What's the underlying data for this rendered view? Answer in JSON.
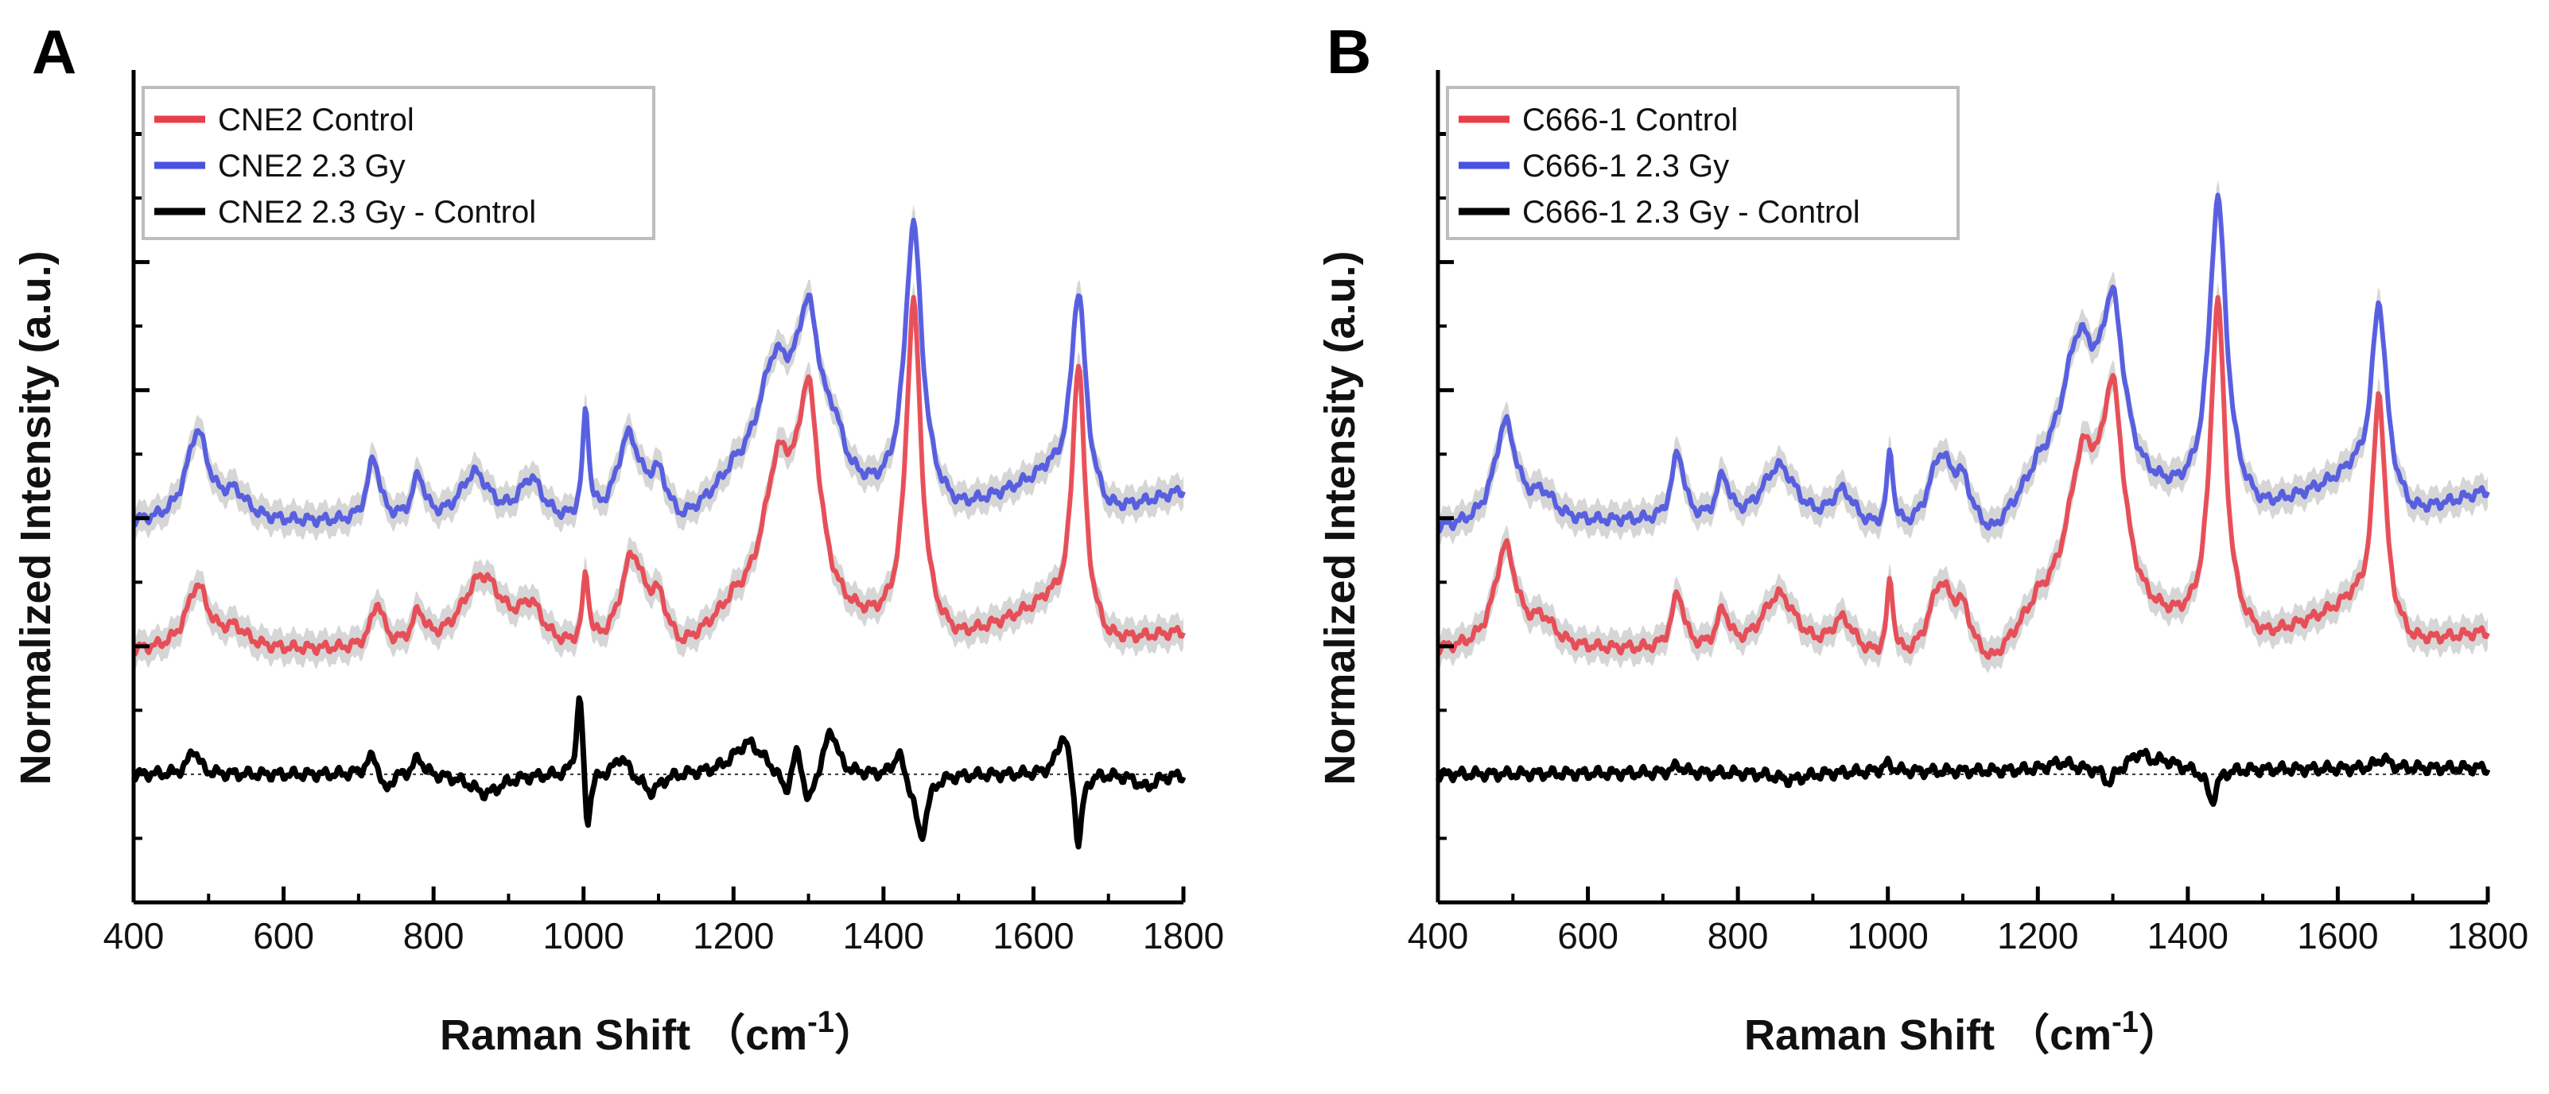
{
  "chart_data": [
    {
      "type": "line",
      "panel": "A",
      "xlabel_main": "Raman Shift",
      "xlabel_unit": "（cm",
      "xlabel_sup": "-1",
      "xlabel_close": "）",
      "ylabel": "Normalized Intensity (a.u.)",
      "xlim": [
        400,
        1800
      ],
      "ylim": [
        0,
        6.5
      ],
      "xticks": [
        "400",
        "600",
        "800",
        "1000",
        "1200",
        "1400",
        "1600",
        "1800"
      ],
      "yticks_count": 7,
      "legend": [
        "CNE2 Control",
        "CNE2 2.3 Gy",
        "CNE2 2.3 Gy - Control"
      ],
      "colors": [
        "#e8404a",
        "#4a52e0",
        "#000000"
      ],
      "series": [
        {
          "name": "CNE2 2.3 Gy",
          "offset": 3.0,
          "baseline": [
            [
              400,
              -0.05
            ],
            [
              650,
              -0.05
            ],
            [
              1130,
              -0.15
            ],
            [
              1200,
              0.2
            ],
            [
              1500,
              0.0
            ],
            [
              1620,
              0.3
            ],
            [
              1700,
              0.0
            ],
            [
              1800,
              0.2
            ]
          ],
          "peaks": [
            [
              485,
              0.7,
              18
            ],
            [
              535,
              0.2,
              20
            ],
            [
              720,
              0.5,
              10
            ],
            [
              780,
              0.35,
              10
            ],
            [
              855,
              0.4,
              25
            ],
            [
              930,
              0.35,
              20
            ],
            [
              1003,
              0.85,
              5
            ],
            [
              1060,
              0.7,
              20
            ],
            [
              1100,
              0.35,
              15
            ],
            [
              1255,
              0.9,
              28
            ],
            [
              1300,
              1.25,
              20
            ],
            [
              1335,
              0.3,
              15
            ],
            [
              1440,
              2.2,
              14
            ],
            [
              1660,
              1.6,
              12
            ]
          ]
        },
        {
          "name": "CNE2 Control",
          "offset": 2.0,
          "baseline": [
            [
              400,
              -0.05
            ],
            [
              650,
              -0.05
            ],
            [
              1130,
              -0.15
            ],
            [
              1200,
              0.2
            ],
            [
              1500,
              0.0
            ],
            [
              1620,
              0.3
            ],
            [
              1700,
              0.0
            ],
            [
              1800,
              0.1
            ]
          ],
          "peaks": [
            [
              485,
              0.5,
              18
            ],
            [
              535,
              0.15,
              20
            ],
            [
              725,
              0.35,
              10
            ],
            [
              780,
              0.25,
              10
            ],
            [
              865,
              0.6,
              35
            ],
            [
              930,
              0.3,
              20
            ],
            [
              1003,
              0.55,
              5
            ],
            [
              1065,
              0.75,
              20
            ],
            [
              1100,
              0.35,
              15
            ],
            [
              1260,
              1.1,
              25
            ],
            [
              1300,
              1.6,
              18
            ],
            [
              1440,
              2.6,
              12
            ],
            [
              1660,
              2.05,
              10
            ]
          ]
        },
        {
          "name": "CNE2 2.3 Gy - Control",
          "offset": 1.0,
          "baseline": [
            [
              400,
              0.0
            ],
            [
              1800,
              0.0
            ]
          ],
          "peaks": [
            [
              480,
              0.2,
              8
            ],
            [
              720,
              0.18,
              10
            ],
            [
              735,
              -0.18,
              8
            ],
            [
              780,
              0.14,
              8
            ],
            [
              870,
              -0.15,
              25
            ],
            [
              995,
              0.7,
              5
            ],
            [
              1005,
              -0.5,
              5
            ],
            [
              1050,
              0.15,
              10
            ],
            [
              1090,
              -0.15,
              15
            ],
            [
              1220,
              0.25,
              25
            ],
            [
              1270,
              -0.2,
              10
            ],
            [
              1285,
              0.25,
              8
            ],
            [
              1300,
              -0.3,
              8
            ],
            [
              1330,
              0.35,
              10
            ],
            [
              1420,
              0.2,
              8
            ],
            [
              1450,
              -0.5,
              10
            ],
            [
              1640,
              0.35,
              10
            ],
            [
              1660,
              -0.6,
              6
            ],
            [
              1750,
              -0.1,
              15
            ]
          ]
        }
      ]
    },
    {
      "type": "line",
      "panel": "B",
      "xlabel_main": "Raman Shift",
      "xlabel_unit": "（cm",
      "xlabel_sup": "-1",
      "xlabel_close": "）",
      "ylabel": "Normalized Intensity (a.u.)",
      "xlim": [
        400,
        1800
      ],
      "ylim": [
        0,
        6.5
      ],
      "xticks": [
        "400",
        "600",
        "800",
        "1000",
        "1200",
        "1400",
        "1600",
        "1800"
      ],
      "yticks_count": 7,
      "legend": [
        "C666-1 Control",
        "C666-1 2.3 Gy",
        "C666-1 2.3 Gy - Control"
      ],
      "colors": [
        "#e8404a",
        "#4a52e0",
        "#000000"
      ],
      "series": [
        {
          "name": "C666-1 2.3 Gy",
          "offset": 3.0,
          "baseline": [
            [
              400,
              -0.1
            ],
            [
              650,
              -0.05
            ],
            [
              1140,
              -0.25
            ],
            [
              1200,
              0.2
            ],
            [
              1500,
              0.0
            ],
            [
              1620,
              0.3
            ],
            [
              1700,
              0.0
            ],
            [
              1800,
              0.2
            ]
          ],
          "peaks": [
            [
              490,
              0.8,
              18
            ],
            [
              540,
              0.2,
              20
            ],
            [
              720,
              0.55,
              10
            ],
            [
              780,
              0.35,
              10
            ],
            [
              855,
              0.5,
              30
            ],
            [
              940,
              0.3,
              20
            ],
            [
              1003,
              0.6,
              5
            ],
            [
              1070,
              0.6,
              20
            ],
            [
              1100,
              0.35,
              15
            ],
            [
              1255,
              1.1,
              28
            ],
            [
              1300,
              1.3,
              18
            ],
            [
              1440,
              2.4,
              14
            ],
            [
              1655,
              1.5,
              12
            ]
          ]
        },
        {
          "name": "C666-1 Control",
          "offset": 2.0,
          "baseline": [
            [
              400,
              -0.05
            ],
            [
              650,
              -0.05
            ],
            [
              1140,
              -0.25
            ],
            [
              1200,
              0.2
            ],
            [
              1500,
              0.0
            ],
            [
              1620,
              0.3
            ],
            [
              1700,
              0.0
            ],
            [
              1800,
              0.1
            ]
          ],
          "peaks": [
            [
              490,
              0.8,
              18
            ],
            [
              540,
              0.2,
              20
            ],
            [
              720,
              0.45,
              10
            ],
            [
              780,
              0.3,
              10
            ],
            [
              855,
              0.5,
              30
            ],
            [
              940,
              0.3,
              20
            ],
            [
              1003,
              0.6,
              5
            ],
            [
              1070,
              0.6,
              20
            ],
            [
              1100,
              0.35,
              15
            ],
            [
              1260,
              1.15,
              25
            ],
            [
              1300,
              1.6,
              18
            ],
            [
              1440,
              2.6,
              12
            ],
            [
              1655,
              1.8,
              10
            ]
          ]
        },
        {
          "name": "C666-1 2.3 Gy - Control",
          "offset": 1.0,
          "baseline": [
            [
              400,
              0.0
            ],
            [
              1800,
              0.05
            ]
          ],
          "peaks": [
            [
              720,
              0.06,
              8
            ],
            [
              870,
              -0.06,
              25
            ],
            [
              1000,
              0.06,
              8
            ],
            [
              1230,
              0.06,
              20
            ],
            [
              1295,
              -0.12,
              8
            ],
            [
              1335,
              0.12,
              15
            ],
            [
              1370,
              0.06,
              20
            ],
            [
              1432,
              -0.25,
              8
            ],
            [
              1660,
              0.08,
              10
            ]
          ]
        }
      ]
    }
  ]
}
